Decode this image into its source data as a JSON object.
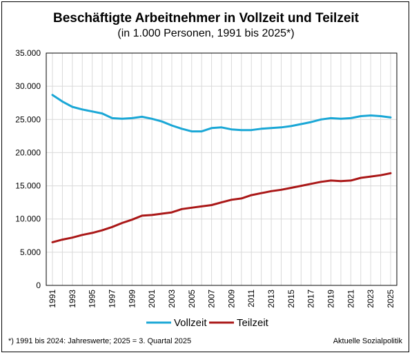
{
  "chart_data": {
    "type": "line",
    "title": "Beschäftigte Arbeitnehmer in Vollzeit und Teilzeit",
    "subtitle": "(in 1.000 Personen, 1991 bis 2025*)",
    "xlabel": "",
    "ylabel": "",
    "ylim": [
      0,
      35000
    ],
    "y_ticks": [
      "0",
      "5.000",
      "10.000",
      "15.000",
      "20.000",
      "25.000",
      "30.000",
      "35.000"
    ],
    "y_tick_values": [
      0,
      5000,
      10000,
      15000,
      20000,
      25000,
      30000,
      35000
    ],
    "x": [
      1991,
      1992,
      1993,
      1994,
      1995,
      1996,
      1997,
      1998,
      1999,
      2000,
      2001,
      2002,
      2003,
      2004,
      2005,
      2006,
      2007,
      2008,
      2009,
      2010,
      2011,
      2012,
      2013,
      2014,
      2015,
      2016,
      2017,
      2018,
      2019,
      2020,
      2021,
      2022,
      2023,
      2024,
      2025
    ],
    "x_tick_labels": [
      "1991",
      "1993",
      "1995",
      "1997",
      "1999",
      "2001",
      "2003",
      "2005",
      "2007",
      "2009",
      "2011",
      "2013",
      "2015",
      "2017",
      "2019",
      "2021",
      "2023",
      "2025"
    ],
    "grid": true,
    "legend_position": "bottom",
    "series": [
      {
        "name": "Vollzeit",
        "color": "#1aa7d6",
        "values": [
          28700,
          27700,
          26900,
          26500,
          26200,
          25900,
          25200,
          25100,
          25200,
          25400,
          25100,
          24700,
          24100,
          23600,
          23200,
          23200,
          23700,
          23800,
          23500,
          23400,
          23400,
          23600,
          23700,
          23800,
          24000,
          24300,
          24600,
          25000,
          25200,
          25100,
          25200,
          25500,
          25600,
          25500,
          25300
        ]
      },
      {
        "name": "Teilzeit",
        "color": "#aa1717",
        "values": [
          6500,
          6900,
          7200,
          7600,
          7900,
          8300,
          8800,
          9400,
          9900,
          10500,
          10600,
          10800,
          11000,
          11500,
          11700,
          11900,
          12100,
          12500,
          12900,
          13100,
          13600,
          13900,
          14200,
          14400,
          14700,
          15000,
          15300,
          15600,
          15800,
          15700,
          15800,
          16200,
          16400,
          16600,
          16900
        ]
      }
    ],
    "footnote": "*) 1991 bis 2024: Jahreswerte; 2025 = 3. Quartal 2025",
    "source": "Aktuelle Sozialpolitik"
  }
}
